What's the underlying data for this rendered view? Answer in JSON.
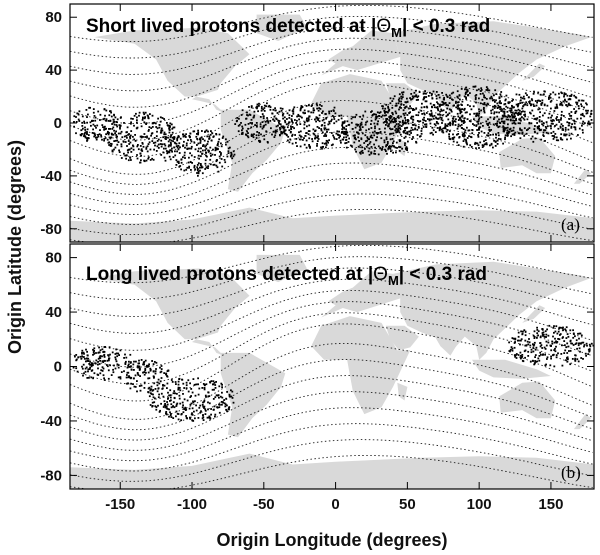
{
  "chart_data": {
    "type": "scatter",
    "xlabel": "Origin Longitude (degrees)",
    "ylabel": "Origin Latitude (degrees)",
    "xlim": [
      -185,
      180
    ],
    "ylim": [
      -90,
      90
    ],
    "x_ticks": [
      -150,
      -100,
      -50,
      0,
      50,
      100,
      150
    ],
    "y_ticks": [
      80,
      40,
      0,
      -40,
      -80
    ],
    "grid": false,
    "background": "world map (light grey continents) with dotted geomagnetic field contours",
    "colors": {
      "points": "#000000",
      "land": "#d9d9d9",
      "contours": "#222222"
    },
    "panels": [
      {
        "tag": "(a)",
        "title_prefix": "Short lived protons detected at |",
        "title_theta": "Θ",
        "title_sub": "M",
        "title_suffix": "| < 0.3 rad",
        "regions": [
          {
            "lon": [
              -185,
              -150
            ],
            "lat": [
              -15,
              12
            ]
          },
          {
            "lon": [
              -160,
              -110
            ],
            "lat": [
              -30,
              8
            ]
          },
          {
            "lon": [
              -120,
              -70
            ],
            "lat": [
              -40,
              -5
            ]
          },
          {
            "lon": [
              -70,
              -30
            ],
            "lat": [
              -15,
              15
            ]
          },
          {
            "lon": [
              -40,
              10
            ],
            "lat": [
              -20,
              15
            ]
          },
          {
            "lon": [
              0,
              60
            ],
            "lat": [
              -25,
              10
            ]
          },
          {
            "lon": [
              30,
              90
            ],
            "lat": [
              -10,
              25
            ]
          },
          {
            "lon": [
              70,
              130
            ],
            "lat": [
              -20,
              28
            ]
          },
          {
            "lon": [
              110,
              180
            ],
            "lat": [
              -15,
              25
            ]
          }
        ]
      },
      {
        "tag": "(b)",
        "title_prefix": "Long lived protons detected at |",
        "title_theta": "Θ",
        "title_sub": "M",
        "title_suffix": "| < 0.3 rad",
        "regions": [
          {
            "lon": [
              -185,
              -140
            ],
            "lat": [
              -10,
              15
            ]
          },
          {
            "lon": [
              -150,
              -115
            ],
            "lat": [
              -20,
              5
            ]
          },
          {
            "lon": [
              -130,
              -70
            ],
            "lat": [
              -40,
              -8
            ]
          },
          {
            "lon": [
              120,
              180
            ],
            "lat": [
              0,
              30
            ]
          }
        ]
      }
    ]
  }
}
